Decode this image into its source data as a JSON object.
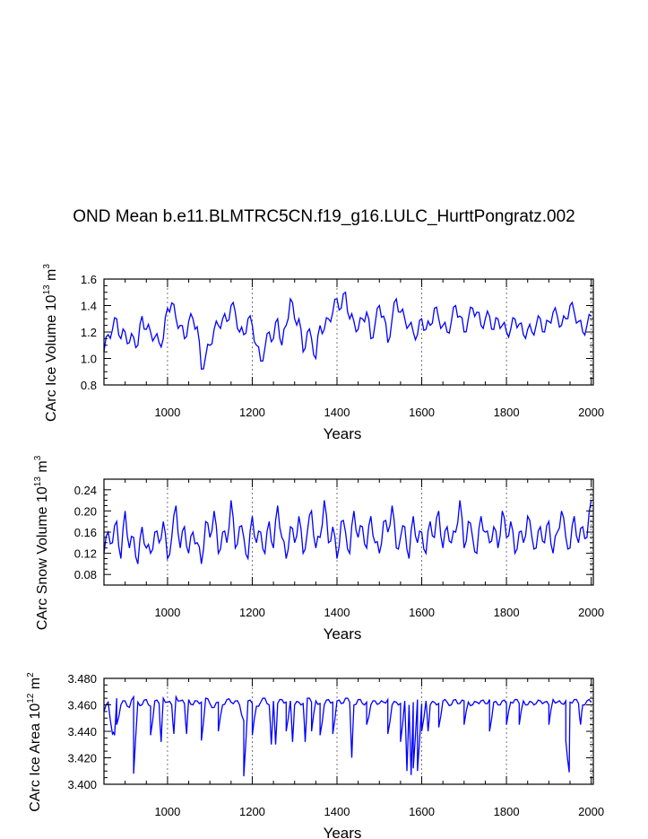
{
  "title": "OND Mean b.e11.BLMTRC5CN.f19_g16.LULC_HurttPongratz.002",
  "chart_data": [
    {
      "type": "line",
      "id": "ice-volume",
      "xlabel": "Years",
      "ylabel_main": "CArc Ice Volume 10",
      "ylabel_exp": "13",
      "ylabel_unit": " m",
      "ylabel_unit_exp": "3",
      "xlim": [
        850,
        2005
      ],
      "ylim": [
        0.8,
        1.6
      ],
      "xticks": [
        "1000",
        "1200",
        "1400",
        "1600",
        "1800",
        "2000"
      ],
      "yticks": [
        "0.8",
        "1.0",
        "1.2",
        "1.4",
        "1.6"
      ],
      "color": "#0000ff",
      "series": {
        "name": "CArc Ice Volume",
        "x_start": 850,
        "x_step": 10,
        "values": [
          1.05,
          1.18,
          1.22,
          1.3,
          1.15,
          1.2,
          1.12,
          1.16,
          1.1,
          1.32,
          1.22,
          1.2,
          1.16,
          1.12,
          1.15,
          1.38,
          1.42,
          1.3,
          1.25,
          1.15,
          1.28,
          1.3,
          1.24,
          0.92,
          1.02,
          1.1,
          1.22,
          1.25,
          1.3,
          1.28,
          1.4,
          1.35,
          1.2,
          1.18,
          1.3,
          1.25,
          1.1,
          0.98,
          1.08,
          1.2,
          1.15,
          1.3,
          1.1,
          1.25,
          1.45,
          1.3,
          1.3,
          1.05,
          1.2,
          1.15,
          1.0,
          1.25,
          1.22,
          1.3,
          1.35,
          1.45,
          1.38,
          1.5,
          1.3,
          1.28,
          1.22,
          1.3,
          1.35,
          1.15,
          1.26,
          1.4,
          1.32,
          1.12,
          1.3,
          1.45,
          1.35,
          1.3,
          1.25,
          1.2,
          1.18,
          1.3,
          1.22,
          1.25,
          1.38,
          1.3,
          1.25,
          1.2,
          1.28,
          1.4,
          1.32,
          1.2,
          1.3,
          1.38,
          1.35,
          1.25,
          1.3,
          1.32,
          1.22,
          1.3,
          1.25,
          1.2,
          1.22,
          1.3,
          1.26,
          1.18,
          1.22,
          1.2,
          1.25,
          1.3,
          1.2,
          1.28,
          1.35,
          1.32,
          1.25,
          1.3,
          1.4,
          1.35,
          1.28,
          1.2,
          1.25,
          1.32
        ]
      }
    },
    {
      "type": "line",
      "id": "snow-volume",
      "xlabel": "Years",
      "ylabel_main": "CArc Snow Volume 10",
      "ylabel_exp": "13",
      "ylabel_unit": " m",
      "ylabel_unit_exp": "3",
      "xlim": [
        850,
        2005
      ],
      "ylim": [
        0.06,
        0.26
      ],
      "xticks": [
        "1000",
        "1200",
        "1400",
        "1600",
        "1800",
        "2000"
      ],
      "yticks": [
        "0.08",
        "0.12",
        "0.16",
        "0.20",
        "0.24"
      ],
      "color": "#0000ff",
      "series": {
        "name": "CArc Snow Volume",
        "x_start": 850,
        "x_step": 10,
        "values": [
          0.12,
          0.16,
          0.14,
          0.18,
          0.11,
          0.2,
          0.13,
          0.15,
          0.1,
          0.17,
          0.13,
          0.12,
          0.16,
          0.14,
          0.18,
          0.11,
          0.15,
          0.21,
          0.13,
          0.17,
          0.12,
          0.16,
          0.14,
          0.1,
          0.18,
          0.15,
          0.2,
          0.12,
          0.16,
          0.14,
          0.22,
          0.13,
          0.17,
          0.15,
          0.11,
          0.19,
          0.14,
          0.16,
          0.12,
          0.18,
          0.13,
          0.21,
          0.15,
          0.11,
          0.17,
          0.14,
          0.19,
          0.12,
          0.16,
          0.2,
          0.13,
          0.15,
          0.22,
          0.14,
          0.17,
          0.11,
          0.18,
          0.16,
          0.12,
          0.2,
          0.15,
          0.17,
          0.13,
          0.19,
          0.14,
          0.12,
          0.18,
          0.16,
          0.21,
          0.13,
          0.15,
          0.17,
          0.11,
          0.19,
          0.14,
          0.16,
          0.12,
          0.18,
          0.15,
          0.2,
          0.13,
          0.17,
          0.14,
          0.16,
          0.22,
          0.13,
          0.18,
          0.15,
          0.12,
          0.19,
          0.16,
          0.14,
          0.17,
          0.13,
          0.2,
          0.15,
          0.18,
          0.12,
          0.16,
          0.14,
          0.19,
          0.15,
          0.13,
          0.17,
          0.14,
          0.18,
          0.12,
          0.16,
          0.2,
          0.15,
          0.13,
          0.19,
          0.14,
          0.17,
          0.15,
          0.22
        ]
      }
    },
    {
      "type": "line",
      "id": "ice-area",
      "xlabel": "Years",
      "ylabel_main": "CArc Ice Area 10",
      "ylabel_exp": "12",
      "ylabel_unit": " m",
      "ylabel_unit_exp": "2",
      "xlim": [
        850,
        2005
      ],
      "ylim": [
        3.4,
        3.48
      ],
      "xticks": [
        "1000",
        "1200",
        "1400",
        "1600",
        "1800",
        "2000"
      ],
      "yticks": [
        "3.400",
        "3.420",
        "3.440",
        "3.460",
        "3.480"
      ],
      "color": "#0000ff",
      "series": {
        "name": "CArc Ice Area",
        "x_start": 850,
        "x_step": 10,
        "values": [
          3.455,
          3.462,
          3.438,
          3.465,
          3.46,
          3.463,
          3.458,
          3.466,
          3.462,
          3.46,
          3.464,
          3.459,
          3.463,
          3.461,
          3.465,
          3.462,
          3.46,
          3.466,
          3.463,
          3.461,
          3.464,
          3.46,
          3.463,
          3.462,
          3.465,
          3.461,
          3.458,
          3.462,
          3.46,
          3.464,
          3.462,
          3.463,
          3.46,
          3.448,
          3.463,
          3.461,
          3.459,
          3.462,
          3.465,
          3.46,
          3.463,
          3.461,
          3.464,
          3.462,
          3.463,
          3.46,
          3.462,
          3.461,
          3.465,
          3.462,
          3.463,
          3.461,
          3.46,
          3.464,
          3.462,
          3.463,
          3.461,
          3.465,
          3.462,
          3.46,
          3.464,
          3.461,
          3.462,
          3.46,
          3.463,
          3.461,
          3.462,
          3.464,
          3.46,
          3.462,
          3.461,
          3.463,
          3.46,
          3.462,
          3.464,
          3.461,
          3.463,
          3.46,
          3.462,
          3.461,
          3.463,
          3.462,
          3.46,
          3.464,
          3.461,
          3.463,
          3.462,
          3.46,
          3.462,
          3.463,
          3.461,
          3.464,
          3.462,
          3.46,
          3.463,
          3.461,
          3.462,
          3.464,
          3.461,
          3.463,
          3.46,
          3.462,
          3.461,
          3.463,
          3.462,
          3.46,
          3.464,
          3.462,
          3.461,
          3.463,
          3.462,
          3.464,
          3.461,
          3.46,
          3.463,
          3.462
        ],
        "dips": [
          [
            875,
            3.437
          ],
          [
            880,
            3.445
          ],
          [
            920,
            3.408
          ],
          [
            960,
            3.437
          ],
          [
            985,
            3.432
          ],
          [
            1015,
            3.438
          ],
          [
            1045,
            3.438
          ],
          [
            1080,
            3.433
          ],
          [
            1120,
            3.44
          ],
          [
            1180,
            3.406
          ],
          [
            1200,
            3.437
          ],
          [
            1245,
            3.43
          ],
          [
            1255,
            3.43
          ],
          [
            1280,
            3.44
          ],
          [
            1295,
            3.432
          ],
          [
            1325,
            3.432
          ],
          [
            1340,
            3.44
          ],
          [
            1360,
            3.437
          ],
          [
            1390,
            3.438
          ],
          [
            1435,
            3.42
          ],
          [
            1470,
            3.445
          ],
          [
            1520,
            3.438
          ],
          [
            1550,
            3.432
          ],
          [
            1565,
            3.41
          ],
          [
            1575,
            3.407
          ],
          [
            1580,
            3.412
          ],
          [
            1590,
            3.41
          ],
          [
            1600,
            3.44
          ],
          [
            1615,
            3.44
          ],
          [
            1640,
            3.443
          ],
          [
            1700,
            3.445
          ],
          [
            1760,
            3.44
          ],
          [
            1800,
            3.445
          ],
          [
            1830,
            3.445
          ],
          [
            1900,
            3.445
          ],
          [
            1940,
            3.433
          ],
          [
            1948,
            3.409
          ],
          [
            1975,
            3.445
          ]
        ]
      }
    }
  ]
}
